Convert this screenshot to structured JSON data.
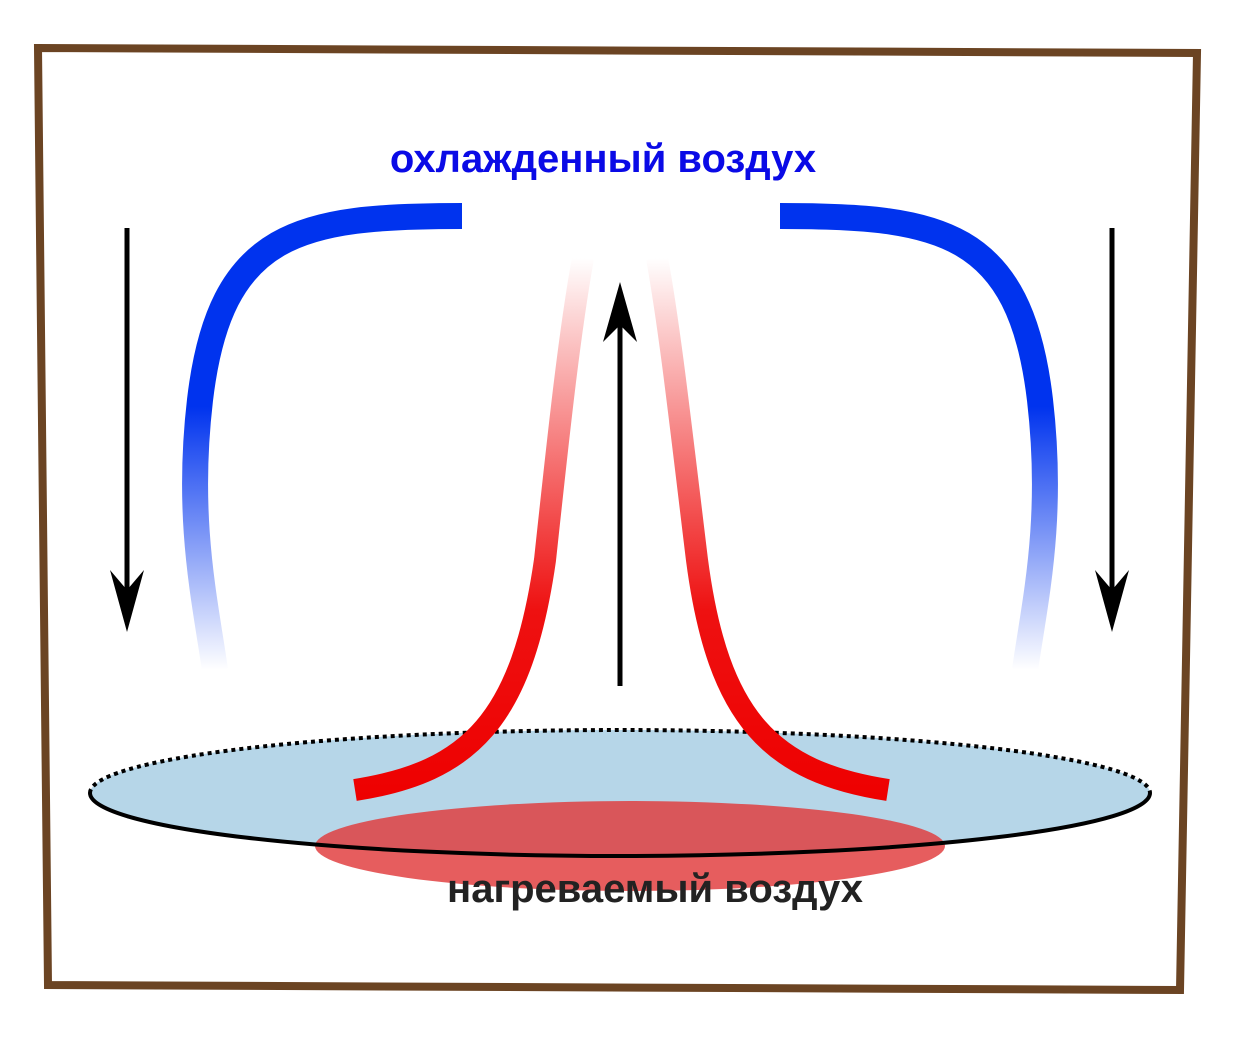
{
  "labels": {
    "cooled_air": "охлажденный воздух",
    "heated_air": "нагреваемый воздух"
  }
}
